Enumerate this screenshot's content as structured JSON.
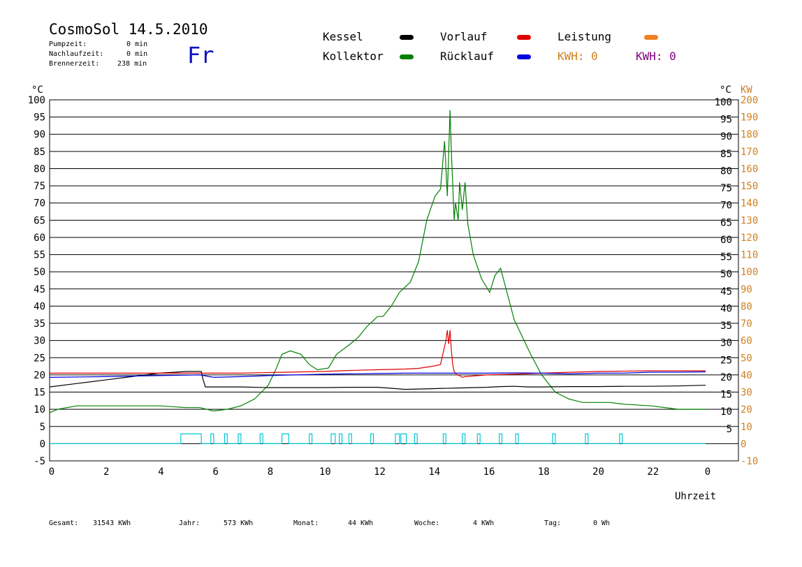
{
  "header": {
    "title": "CosmoSol 14.5.2010",
    "day": "Fr",
    "info": [
      {
        "label": "Pumpzeit:",
        "value": "0 min"
      },
      {
        "label": "Nachlaufzeit:",
        "value": "0 min"
      },
      {
        "label": "Brennerzeit:",
        "value": "238 min"
      }
    ]
  },
  "legend": {
    "kessel": "Kessel",
    "kollektor": "Kollektor",
    "vorlauf": "Vorlauf",
    "ruecklauf": "Rücklauf",
    "leistung": "Leistung",
    "kwh1": "KWH: 0",
    "kwh2": "KWH: 0"
  },
  "colors": {
    "kessel": "#000000",
    "kollektor": "#008000",
    "vorlauf": "#e00000",
    "ruecklauf": "#0000e0",
    "leistung": "#f08020",
    "kwh2": "#800080",
    "pump": "#00c8d8",
    "axis_right": "#d08020"
  },
  "footer": {
    "gesamt_label": "Gesamt:",
    "gesamt_value": "31543 KWh",
    "jahr_label": "Jahr:",
    "jahr_value": "573 KWh",
    "monat_label": "Monat:",
    "monat_value": "44 KWh",
    "woche_label": "Woche:",
    "woche_value": "4 KWh",
    "tag_label": "Tag:",
    "tag_value": "0 Wh"
  },
  "chart_data": {
    "type": "line",
    "xlabel": "Uhrzeit",
    "ylabel_left": "°C",
    "ylabel_right": "°C",
    "ylabel_right2": "KW",
    "xlim": [
      0,
      24
    ],
    "ylim": [
      -5,
      100
    ],
    "x_ticks": [
      "0",
      "2",
      "4",
      "6",
      "8",
      "10",
      "12",
      "14",
      "16",
      "18",
      "20",
      "22",
      "0"
    ],
    "y_ticks_left": [
      "100",
      "95",
      "90",
      "85",
      "80",
      "75",
      "70",
      "65",
      "60",
      "55",
      "50",
      "45",
      "40",
      "35",
      "30",
      "25",
      "20",
      "15",
      "10",
      "5",
      "0",
      "-5"
    ],
    "y_ticks_right": [
      "100",
      "95",
      "90",
      "85",
      "80",
      "75",
      "70",
      "65",
      "60",
      "55",
      "50",
      "45",
      "40",
      "35",
      "30",
      "25",
      "20",
      "15",
      "10",
      "5"
    ],
    "y_ticks_kw": [
      "200",
      "190",
      "180",
      "170",
      "160",
      "150",
      "140",
      "130",
      "120",
      "110",
      "100",
      "90",
      "80",
      "70",
      "60",
      "50",
      "40",
      "30",
      "20",
      "10",
      "0",
      "-10"
    ],
    "grid": true,
    "series": [
      {
        "name": "Kollektor",
        "x": [
          0,
          0.3,
          1,
          2,
          3,
          4,
          5,
          5.5,
          6,
          6.5,
          7,
          7.5,
          8,
          8.3,
          8.5,
          8.8,
          9.2,
          9.5,
          9.8,
          10.2,
          10.5,
          11,
          11.3,
          11.6,
          12,
          12.2,
          12.5,
          12.8,
          13.2,
          13.5,
          13.8,
          14.1,
          14.3,
          14.45,
          14.55,
          14.65,
          14.7,
          14.8,
          14.85,
          14.95,
          15,
          15.1,
          15.2,
          15.3,
          15.5,
          15.8,
          16.1,
          16.3,
          16.5,
          16.6,
          16.8,
          17,
          17.3,
          17.6,
          18,
          18.5,
          19,
          19.5,
          20,
          20.5,
          21,
          22,
          23,
          24
        ],
        "values": [
          9,
          10,
          11,
          11,
          11,
          11,
          10.5,
          10.5,
          9.5,
          10,
          11,
          13,
          17,
          22,
          26,
          27,
          26,
          23,
          21.5,
          22,
          26,
          29,
          31,
          34,
          37,
          37,
          40,
          44,
          47,
          53,
          65,
          72,
          74,
          88,
          72,
          97,
          85,
          65,
          70,
          65,
          76,
          68,
          76,
          64,
          55,
          48,
          44,
          49,
          51,
          48,
          42,
          36,
          31,
          26,
          20,
          15,
          13,
          12,
          12,
          12,
          11.5,
          11,
          10,
          10
        ]
      },
      {
        "name": "Kessel",
        "x": [
          0,
          1,
          2,
          3,
          4,
          5,
          5.55,
          5.6,
          5.7,
          6,
          7,
          8,
          9,
          10,
          11,
          12,
          12.7,
          13,
          14,
          15,
          16,
          16.5,
          17,
          17.5,
          18,
          19,
          20,
          21,
          22,
          23,
          23.5,
          24
        ],
        "values": [
          16.5,
          17.5,
          18.5,
          19.5,
          20.5,
          21,
          21,
          19,
          16.5,
          16.5,
          16.5,
          16.3,
          16.3,
          16.3,
          16.4,
          16.4,
          16,
          15.8,
          16,
          16.2,
          16.4,
          16.6,
          16.7,
          16.5,
          16.5,
          16.6,
          16.6,
          16.7,
          16.7,
          16.8,
          16.9,
          17
        ]
      },
      {
        "name": "Vorlauf",
        "x": [
          0,
          2,
          4,
          6,
          7,
          8,
          10,
          11,
          12,
          13,
          13.5,
          14,
          14.3,
          14.5,
          14.55,
          14.6,
          14.65,
          14.7,
          14.75,
          14.8,
          14.9,
          15,
          15.1,
          15.2,
          16,
          17,
          18,
          20,
          22,
          24
        ],
        "values": [
          20.5,
          20.5,
          20.5,
          20.5,
          20.5,
          20.7,
          21,
          21.3,
          21.5,
          21.7,
          21.9,
          22.5,
          23,
          30,
          33,
          29,
          33,
          27,
          23,
          21,
          20,
          19.8,
          19.3,
          19.5,
          20,
          20.2,
          20.5,
          21,
          21.2,
          21.2
        ]
      },
      {
        "name": "Rücklauf",
        "x": [
          0,
          2,
          4,
          5.5,
          6,
          7,
          8,
          9,
          10,
          11,
          12,
          13,
          14,
          15,
          16,
          17,
          18,
          19,
          20,
          21,
          22,
          23,
          24
        ],
        "values": [
          19.3,
          19.5,
          19.8,
          20,
          19.3,
          19.5,
          19.8,
          20,
          20.2,
          20.3,
          20.4,
          20.5,
          20.5,
          20.5,
          20.5,
          20.6,
          20.5,
          20.3,
          20.5,
          20.5,
          20.8,
          20.8,
          20.9
        ]
      },
      {
        "name": "Leistung",
        "x": [
          0,
          24
        ],
        "values": [
          0,
          0
        ]
      }
    ],
    "pump_pulses": [
      [
        4.8,
        5.55
      ],
      [
        5.9,
        6.0
      ],
      [
        6.4,
        6.5
      ],
      [
        6.9,
        7.0
      ],
      [
        7.7,
        7.8
      ],
      [
        8.5,
        8.75
      ],
      [
        9.5,
        9.6
      ],
      [
        10.3,
        10.45
      ],
      [
        10.6,
        10.7
      ],
      [
        10.95,
        11.05
      ],
      [
        11.75,
        11.85
      ],
      [
        12.65,
        12.8
      ],
      [
        12.85,
        13.05
      ],
      [
        13.35,
        13.45
      ],
      [
        14.4,
        14.5
      ],
      [
        15.1,
        15.2
      ],
      [
        15.65,
        15.75
      ],
      [
        16.45,
        16.55
      ],
      [
        17.05,
        17.15
      ],
      [
        18.4,
        18.5
      ],
      [
        19.6,
        19.7
      ],
      [
        20.85,
        20.95
      ]
    ],
    "pump_pulse_value": 0
  }
}
